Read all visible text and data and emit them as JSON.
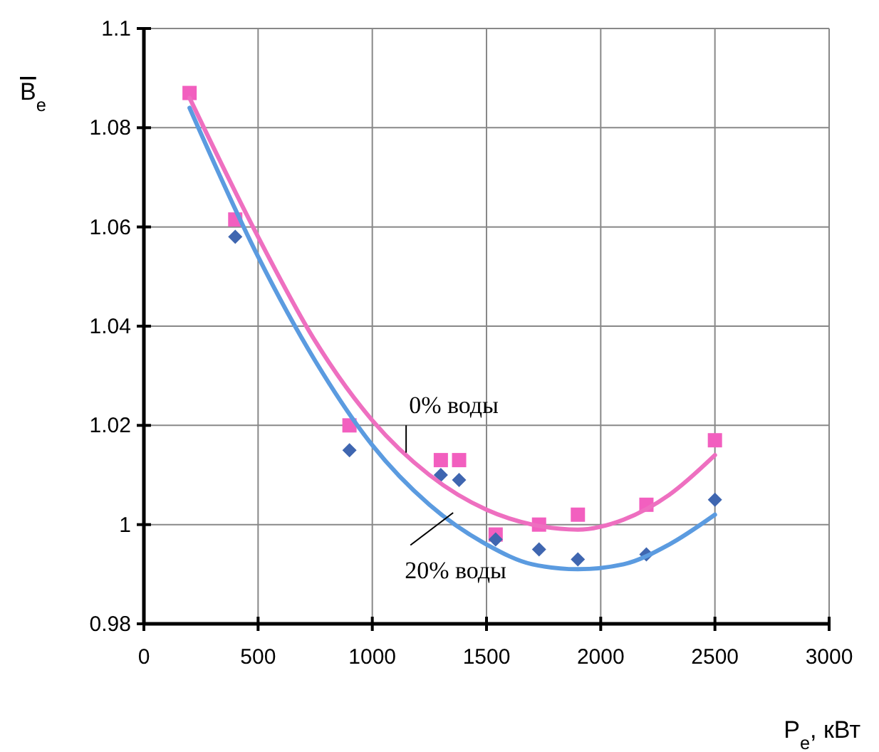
{
  "chart_data": {
    "type": "scatter",
    "xlabel": "P$_{e}$, кВт",
    "ylabel": "B$_{e}$",
    "xlim": [
      0,
      3000
    ],
    "xticks": [
      0,
      500,
      1000,
      1500,
      2000,
      2500,
      3000
    ],
    "ylim": [
      0.98,
      1.1
    ],
    "yticks": [
      0.98,
      1,
      1.02,
      1.04,
      1.06,
      1.08,
      1.1
    ],
    "grid": true,
    "series": [
      {
        "marker": "square",
        "color": "#f25fbf",
        "x": [
          200,
          400,
          900,
          1300,
          1380,
          1540,
          1730,
          1900,
          2200,
          2500
        ],
        "values": [
          1.087,
          1.0615,
          1.02,
          1.013,
          1.013,
          0.998,
          1.0,
          1.002,
          1.004,
          1.017
        ]
      },
      {
        "marker": "diamond",
        "color": "#3f66b0",
        "x": [
          400,
          900,
          1300,
          1380,
          1540,
          1730,
          1900,
          2200,
          2500
        ],
        "values": [
          1.058,
          1.015,
          1.01,
          1.009,
          0.997,
          0.995,
          0.993,
          0.994,
          1.005
        ]
      },
      {
        "type": "line",
        "marker": "none",
        "color": "#ee6fc0",
        "x": [
          200,
          500,
          750,
          1000,
          1250,
          1500,
          1700,
          1900,
          2100,
          2300,
          2500
        ],
        "values": [
          1.086,
          1.058,
          1.037,
          1.021,
          1.01,
          1.003,
          1.0,
          0.999,
          1.001,
          1.006,
          1.014
        ]
      },
      {
        "type": "line",
        "marker": "none",
        "color": "#5b9be0",
        "x": [
          200,
          500,
          750,
          1000,
          1250,
          1500,
          1700,
          1900,
          2100,
          2300,
          2500
        ],
        "values": [
          1.084,
          1.054,
          1.033,
          1.016,
          1.004,
          0.996,
          0.992,
          0.991,
          0.992,
          0.996,
          1.002
        ]
      }
    ],
    "annotations": [
      {
        "text": "0% воды",
        "x": 1148,
        "y": 1.0145
      },
      {
        "text": "20% воды",
        "x": 1354,
        "y": 1.0024
      }
    ]
  }
}
